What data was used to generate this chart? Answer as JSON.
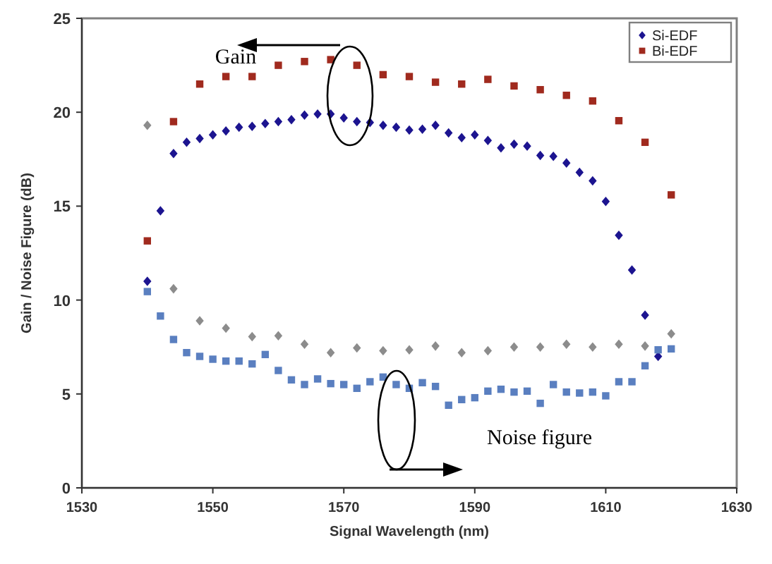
{
  "chart_data": {
    "type": "scatter",
    "xlabel": "Signal Wavelength (nm)",
    "ylabel": "Gain / Noise Figure (dB)",
    "xlim": [
      1530,
      1630
    ],
    "xticks": [
      1530,
      1550,
      1570,
      1590,
      1610,
      1630
    ],
    "ylim": [
      0,
      25
    ],
    "yticks": [
      0,
      5,
      10,
      15,
      20,
      25
    ],
    "grid": false,
    "legend": "top right",
    "annotations": [
      "Gain",
      "Noise figure"
    ],
    "series": [
      {
        "name": "Si-EDF",
        "color": "#1c1490",
        "marker": "diamond",
        "x": [
          1540,
          1542,
          1544,
          1546,
          1548,
          1550,
          1552,
          1554,
          1556,
          1558,
          1560,
          1562,
          1564,
          1566,
          1568,
          1570,
          1572,
          1574,
          1576,
          1578,
          1580,
          1582,
          1584,
          1586,
          1588,
          1590,
          1592,
          1594,
          1596,
          1598,
          1600,
          1602,
          1604,
          1606,
          1608,
          1610,
          1612,
          1614,
          1616,
          1618
        ],
        "values": [
          11.0,
          14.75,
          17.8,
          18.4,
          18.6,
          18.8,
          19.0,
          19.2,
          19.25,
          19.4,
          19.5,
          19.6,
          19.85,
          19.9,
          19.9,
          19.7,
          19.5,
          19.45,
          19.3,
          19.2,
          19.05,
          19.1,
          19.3,
          18.9,
          18.65,
          18.8,
          18.5,
          18.1,
          18.3,
          18.2,
          17.7,
          17.65,
          17.3,
          16.8,
          16.35,
          15.25,
          13.45,
          11.6,
          9.2,
          7.0
        ]
      },
      {
        "name": "Bi-EDF",
        "color": "#a02a1e",
        "marker": "square",
        "x": [
          1540,
          1544,
          1548,
          1552,
          1556,
          1560,
          1564,
          1568,
          1572,
          1576,
          1580,
          1584,
          1588,
          1592,
          1596,
          1600,
          1604,
          1608,
          1612,
          1616,
          1620
        ],
        "values": [
          13.15,
          19.5,
          21.5,
          21.9,
          21.9,
          22.5,
          22.7,
          22.8,
          22.5,
          22.0,
          21.9,
          21.6,
          21.5,
          21.75,
          21.4,
          21.2,
          20.9,
          20.6,
          19.55,
          18.4,
          15.6
        ]
      },
      {
        "color": "#5a7fc0",
        "marker": "square",
        "x": [
          1540,
          1542,
          1544,
          1546,
          1548,
          1550,
          1552,
          1554,
          1556,
          1558,
          1560,
          1562,
          1564,
          1566,
          1568,
          1570,
          1572,
          1574,
          1576,
          1578,
          1580,
          1582,
          1584,
          1586,
          1588,
          1590,
          1592,
          1594,
          1596,
          1598,
          1600,
          1602,
          1604,
          1606,
          1608,
          1610,
          1612,
          1614,
          1616,
          1618,
          1620
        ],
        "values": [
          10.45,
          9.15,
          7.9,
          7.2,
          7.0,
          6.85,
          6.75,
          6.75,
          6.6,
          7.1,
          6.25,
          5.75,
          5.5,
          5.8,
          5.55,
          5.5,
          5.3,
          5.65,
          5.9,
          5.5,
          5.3,
          5.6,
          5.4,
          4.4,
          4.7,
          4.8,
          5.15,
          5.25,
          5.1,
          5.15,
          4.5,
          5.5,
          5.1,
          5.05,
          5.1,
          4.9,
          5.65,
          5.65,
          6.5,
          7.35,
          7.4
        ]
      },
      {
        "color": "#8c8c8c",
        "marker": "diamond",
        "x": [
          1540,
          1544,
          1548,
          1552,
          1556,
          1560,
          1564,
          1568,
          1572,
          1576,
          1580,
          1584,
          1588,
          1592,
          1596,
          1600,
          1604,
          1608,
          1612,
          1616,
          1620
        ],
        "values": [
          19.3,
          10.6,
          8.9,
          8.5,
          8.05,
          8.1,
          7.65,
          7.2,
          7.45,
          7.3,
          7.35,
          7.55,
          7.2,
          7.3,
          7.5,
          7.5,
          7.65,
          7.5,
          7.65,
          7.55,
          8.2
        ]
      }
    ]
  }
}
